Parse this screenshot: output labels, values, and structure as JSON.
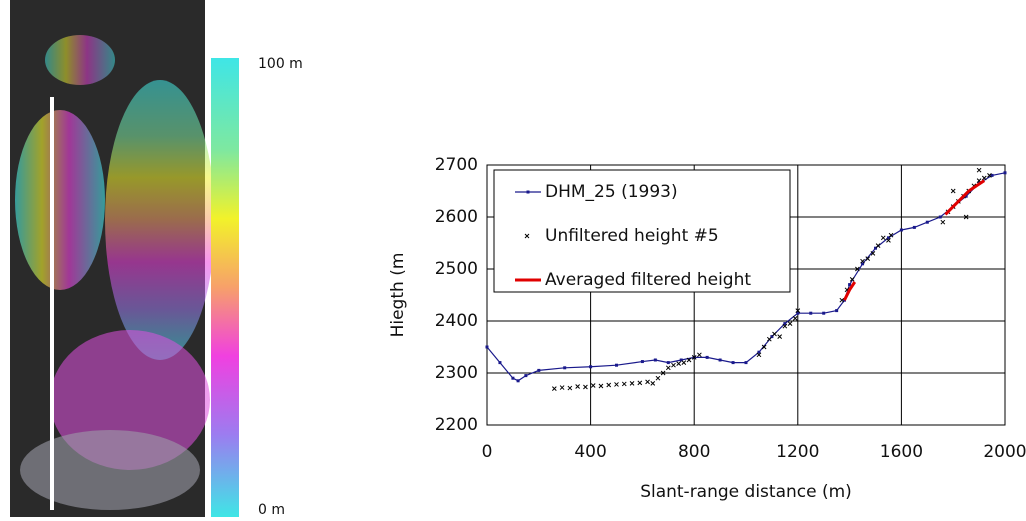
{
  "colorbar_labels": [
    "100 m",
    "0 m"
  ],
  "chart_data": {
    "type": "line",
    "x_label": "Slant-range distance (m)",
    "y_label": "Hiegth (m",
    "xlim": [
      0,
      2000
    ],
    "xticks": [
      0,
      400,
      800,
      1200,
      1600,
      2000
    ],
    "ylim": [
      2200,
      2700
    ],
    "yticks": [
      2200,
      2300,
      2400,
      2500,
      2600,
      2700
    ],
    "grid": true,
    "legend": "upper left",
    "series": [
      {
        "name": "DHM_25 (1993)",
        "color": "#1a1a8c",
        "style": "line-marker",
        "x": [
          0,
          50,
          100,
          120,
          150,
          200,
          300,
          400,
          500,
          600,
          650,
          700,
          750,
          800,
          850,
          900,
          950,
          1000,
          1050,
          1100,
          1150,
          1200,
          1250,
          1300,
          1350,
          1380,
          1400,
          1450,
          1500,
          1550,
          1600,
          1650,
          1700,
          1750,
          1800,
          1850,
          1900,
          1950,
          2000
        ],
        "values": [
          2350,
          2320,
          2290,
          2285,
          2295,
          2305,
          2310,
          2312,
          2315,
          2322,
          2325,
          2320,
          2325,
          2330,
          2330,
          2325,
          2320,
          2320,
          2340,
          2370,
          2395,
          2415,
          2415,
          2415,
          2420,
          2440,
          2470,
          2510,
          2540,
          2560,
          2575,
          2580,
          2590,
          2600,
          2620,
          2640,
          2665,
          2680,
          2685
        ]
      },
      {
        "name": "Unfiltered height #5",
        "color": "#000000",
        "style": "cross",
        "x": [
          260,
          290,
          320,
          350,
          380,
          410,
          440,
          470,
          500,
          530,
          560,
          590,
          620,
          640,
          660,
          680,
          700,
          720,
          740,
          760,
          780,
          800,
          820,
          1050,
          1070,
          1090,
          1110,
          1130,
          1150,
          1170,
          1190,
          1200,
          1370,
          1390,
          1410,
          1430,
          1450,
          1470,
          1490,
          1510,
          1530,
          1550,
          1560,
          1760,
          1780,
          1800,
          1820,
          1840,
          1860,
          1880,
          1900,
          1920,
          1940,
          1800,
          1850,
          1900
        ],
        "values": [
          2270,
          2272,
          2271,
          2274,
          2273,
          2276,
          2275,
          2277,
          2278,
          2279,
          2280,
          2281,
          2283,
          2280,
          2290,
          2300,
          2310,
          2315,
          2318,
          2320,
          2325,
          2330,
          2335,
          2335,
          2350,
          2365,
          2375,
          2370,
          2390,
          2395,
          2405,
          2420,
          2440,
          2460,
          2480,
          2500,
          2515,
          2520,
          2530,
          2545,
          2560,
          2555,
          2565,
          2590,
          2610,
          2620,
          2630,
          2640,
          2650,
          2660,
          2670,
          2675,
          2680,
          2650,
          2600,
          2690
        ]
      },
      {
        "name": "Averaged filtered height",
        "color": "#e00000",
        "style": "line",
        "x": [
          1380,
          1400,
          1420,
          1600,
          1770,
          1800,
          1830,
          1860,
          1890,
          1920
        ],
        "values": [
          2440,
          2460,
          2475,
          null,
          2605,
          2620,
          2635,
          2650,
          2660,
          2670
        ]
      }
    ]
  }
}
